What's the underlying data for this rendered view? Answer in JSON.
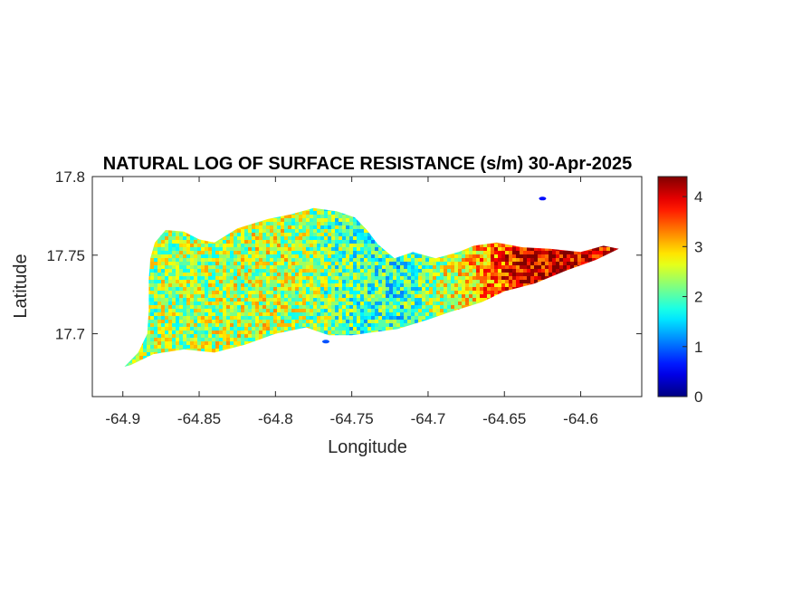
{
  "chart_data": {
    "type": "heatmap",
    "title": "NATURAL LOG OF SURFACE RESISTANCE (s/m) 30-Apr-2025",
    "xlabel": "Longitude",
    "ylabel": "Latitude",
    "xlim": [
      -64.92,
      -64.56
    ],
    "ylim": [
      17.66,
      17.8
    ],
    "xticks": [
      -64.9,
      -64.85,
      -64.8,
      -64.75,
      -64.7,
      -64.65,
      -64.6
    ],
    "xtick_labels": [
      "-64.9",
      "-64.85",
      "-64.8",
      "-64.75",
      "-64.7",
      "-64.65",
      "-64.6"
    ],
    "yticks": [
      17.7,
      17.75,
      17.8
    ],
    "ytick_labels": [
      "17.7",
      "17.75",
      "17.8"
    ],
    "colormap": "jet",
    "colorbar": {
      "range": [
        0,
        4.4
      ],
      "ticks": [
        0,
        1,
        2,
        3,
        4
      ],
      "tick_labels": [
        "0",
        "1",
        "2",
        "3",
        "4"
      ],
      "placement": "right"
    },
    "region_outline": [
      [
        -64.899,
        17.679
      ],
      [
        -64.89,
        17.688
      ],
      [
        -64.884,
        17.7
      ],
      [
        -64.883,
        17.716
      ],
      [
        -64.883,
        17.735
      ],
      [
        -64.882,
        17.748
      ],
      [
        -64.879,
        17.758
      ],
      [
        -64.872,
        17.766
      ],
      [
        -64.86,
        17.765
      ],
      [
        -64.85,
        17.76
      ],
      [
        -64.84,
        17.758
      ],
      [
        -64.825,
        17.767
      ],
      [
        -64.805,
        17.773
      ],
      [
        -64.79,
        17.776
      ],
      [
        -64.775,
        17.78
      ],
      [
        -64.76,
        17.778
      ],
      [
        -64.748,
        17.774
      ],
      [
        -64.74,
        17.766
      ],
      [
        -64.733,
        17.757
      ],
      [
        -64.722,
        17.748
      ],
      [
        -64.71,
        17.752
      ],
      [
        -64.695,
        17.748
      ],
      [
        -64.68,
        17.752
      ],
      [
        -64.67,
        17.756
      ],
      [
        -64.655,
        17.758
      ],
      [
        -64.638,
        17.755
      ],
      [
        -64.62,
        17.754
      ],
      [
        -64.6,
        17.752
      ],
      [
        -64.585,
        17.756
      ],
      [
        -64.575,
        17.754
      ],
      [
        -64.59,
        17.747
      ],
      [
        -64.61,
        17.74
      ],
      [
        -64.63,
        17.732
      ],
      [
        -64.65,
        17.727
      ],
      [
        -64.665,
        17.72
      ],
      [
        -64.685,
        17.714
      ],
      [
        -64.7,
        17.709
      ],
      [
        -64.72,
        17.703
      ],
      [
        -64.735,
        17.701
      ],
      [
        -64.75,
        17.699
      ],
      [
        -64.765,
        17.699
      ],
      [
        -64.78,
        17.704
      ],
      [
        -64.8,
        17.7
      ],
      [
        -64.82,
        17.693
      ],
      [
        -64.84,
        17.688
      ],
      [
        -64.86,
        17.69
      ],
      [
        -64.88,
        17.687
      ],
      [
        -64.895,
        17.68
      ]
    ],
    "value_profile": [
      {
        "lon": -64.9,
        "value": 2.3
      },
      {
        "lon": -64.85,
        "value": 2.4
      },
      {
        "lon": -64.8,
        "value": 2.5
      },
      {
        "lon": -64.75,
        "value": 2.0
      },
      {
        "lon": -64.72,
        "value": 1.8
      },
      {
        "lon": -64.7,
        "value": 2.3
      },
      {
        "lon": -64.68,
        "value": 2.7
      },
      {
        "lon": -64.66,
        "value": 3.3
      },
      {
        "lon": -64.64,
        "value": 4.0
      },
      {
        "lon": -64.6,
        "value": 4.0
      },
      {
        "lon": -64.575,
        "value": 3.7
      }
    ],
    "islets": [
      {
        "lon": -64.625,
        "lat": 17.786,
        "value": 0.6
      },
      {
        "lon": -64.767,
        "lat": 17.695,
        "value": 0.9
      }
    ]
  }
}
